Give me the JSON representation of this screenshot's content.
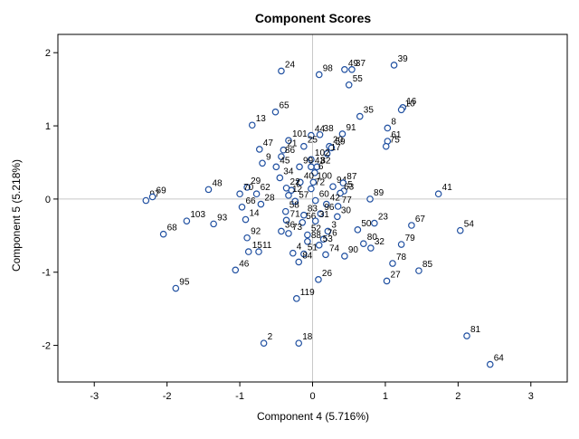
{
  "chart_data": {
    "type": "scatter",
    "title": "Component Scores",
    "xlabel": "Component 4 (5.716%)",
    "ylabel": "Component 5 (5.218%)",
    "xlim": [
      -3.5,
      3.5
    ],
    "ylim": [
      -2.5,
      2.25
    ],
    "xticks": [
      -3,
      -2,
      -1,
      0,
      1,
      2,
      3
    ],
    "yticks": [
      -2,
      -1,
      0,
      1,
      2
    ],
    "grid": false,
    "marker_color": "#1f4fa0",
    "reference_lines": {
      "x": 0,
      "y": 0
    },
    "points": [
      {
        "label": "39",
        "x": 1.12,
        "y": 1.83
      },
      {
        "label": "24",
        "x": -0.43,
        "y": 1.75
      },
      {
        "label": "49",
        "x": 0.44,
        "y": 1.77
      },
      {
        "label": "98",
        "x": 0.09,
        "y": 1.7
      },
      {
        "label": "37",
        "x": 0.54,
        "y": 1.77
      },
      {
        "label": "55",
        "x": 0.5,
        "y": 1.56
      },
      {
        "label": "16",
        "x": 1.24,
        "y": 1.25
      },
      {
        "label": "65",
        "x": -0.51,
        "y": 1.19
      },
      {
        "label": "35",
        "x": 0.65,
        "y": 1.13
      },
      {
        "label": "10",
        "x": 1.22,
        "y": 1.22
      },
      {
        "label": "13",
        "x": -0.83,
        "y": 1.01
      },
      {
        "label": "8",
        "x": 1.03,
        "y": 0.97
      },
      {
        "label": "44",
        "x": -0.02,
        "y": 0.87
      },
      {
        "label": "38",
        "x": 0.1,
        "y": 0.88
      },
      {
        "label": "91",
        "x": 0.41,
        "y": 0.89
      },
      {
        "label": "61",
        "x": 1.03,
        "y": 0.79
      },
      {
        "label": "101",
        "x": -0.33,
        "y": 0.8
      },
      {
        "label": "25",
        "x": -0.12,
        "y": 0.72
      },
      {
        "label": "21",
        "x": -0.4,
        "y": 0.67
      },
      {
        "label": "20",
        "x": 0.23,
        "y": 0.72
      },
      {
        "label": "59",
        "x": 0.26,
        "y": 0.7
      },
      {
        "label": "47",
        "x": -0.73,
        "y": 0.68
      },
      {
        "label": "17",
        "x": 0.2,
        "y": 0.62
      },
      {
        "label": "75",
        "x": 1.01,
        "y": 0.72
      },
      {
        "label": "86",
        "x": -0.43,
        "y": 0.58
      },
      {
        "label": "102",
        "x": -0.02,
        "y": 0.54
      },
      {
        "label": "9",
        "x": -0.69,
        "y": 0.49
      },
      {
        "label": "45",
        "x": -0.5,
        "y": 0.44
      },
      {
        "label": "99",
        "x": -0.18,
        "y": 0.44
      },
      {
        "label": "43",
        "x": -0.02,
        "y": 0.44
      },
      {
        "label": "82",
        "x": 0.06,
        "y": 0.44
      },
      {
        "label": "6",
        "x": 0.03,
        "y": 0.36
      },
      {
        "label": "34",
        "x": -0.45,
        "y": 0.29
      },
      {
        "label": "29",
        "x": -0.9,
        "y": 0.16
      },
      {
        "label": "40",
        "x": -0.17,
        "y": 0.23
      },
      {
        "label": "100",
        "x": 0.01,
        "y": 0.23
      },
      {
        "label": "94",
        "x": 0.28,
        "y": 0.17
      },
      {
        "label": "87",
        "x": 0.42,
        "y": 0.22
      },
      {
        "label": "5",
        "x": 0.43,
        "y": 0.11
      },
      {
        "label": "48",
        "x": -1.43,
        "y": 0.13
      },
      {
        "label": "97",
        "x": -2.29,
        "y": -0.02
      },
      {
        "label": "69",
        "x": -2.2,
        "y": 0.03
      },
      {
        "label": "70",
        "x": -1.0,
        "y": 0.07
      },
      {
        "label": "62",
        "x": -0.77,
        "y": 0.07
      },
      {
        "label": "22",
        "x": -0.36,
        "y": 0.15
      },
      {
        "label": "7",
        "x": -0.29,
        "y": 0.12
      },
      {
        "label": "72",
        "x": -0.02,
        "y": 0.14
      },
      {
        "label": "63",
        "x": 0.38,
        "y": 0.08
      },
      {
        "label": "89",
        "x": 0.79,
        "y": 0.0
      },
      {
        "label": "41",
        "x": 1.73,
        "y": 0.07
      },
      {
        "label": "12",
        "x": -0.33,
        "y": 0.05
      },
      {
        "label": "57",
        "x": -0.24,
        "y": -0.03
      },
      {
        "label": "60",
        "x": 0.04,
        "y": -0.02
      },
      {
        "label": "42",
        "x": 0.19,
        "y": -0.07
      },
      {
        "label": "77",
        "x": 0.35,
        "y": -0.1
      },
      {
        "label": "66",
        "x": -0.97,
        "y": -0.11
      },
      {
        "label": "28",
        "x": -0.71,
        "y": -0.07
      },
      {
        "label": "58",
        "x": -0.37,
        "y": -0.17
      },
      {
        "label": "83",
        "x": -0.12,
        "y": -0.22
      },
      {
        "label": "96",
        "x": 0.11,
        "y": -0.2
      },
      {
        "label": "30",
        "x": 0.34,
        "y": -0.24
      },
      {
        "label": "103",
        "x": -1.73,
        "y": -0.3
      },
      {
        "label": "93",
        "x": -1.36,
        "y": -0.34
      },
      {
        "label": "14",
        "x": -0.92,
        "y": -0.28
      },
      {
        "label": "71",
        "x": -0.36,
        "y": -0.29
      },
      {
        "label": "56",
        "x": -0.14,
        "y": -0.32
      },
      {
        "label": "31",
        "x": 0.04,
        "y": -0.3
      },
      {
        "label": "68",
        "x": -2.05,
        "y": -0.48
      },
      {
        "label": "92",
        "x": -0.9,
        "y": -0.53
      },
      {
        "label": "36",
        "x": -0.43,
        "y": -0.44
      },
      {
        "label": "73",
        "x": -0.33,
        "y": -0.47
      },
      {
        "label": "52",
        "x": -0.07,
        "y": -0.49
      },
      {
        "label": "3",
        "x": 0.21,
        "y": -0.44
      },
      {
        "label": "50",
        "x": 0.62,
        "y": -0.42
      },
      {
        "label": "76",
        "x": 0.15,
        "y": -0.55
      },
      {
        "label": "23",
        "x": 0.85,
        "y": -0.33
      },
      {
        "label": "67",
        "x": 1.36,
        "y": -0.36
      },
      {
        "label": "54",
        "x": 2.03,
        "y": -0.43
      },
      {
        "label": "88",
        "x": -0.07,
        "y": -0.58
      },
      {
        "label": "53",
        "x": 0.09,
        "y": -0.63
      },
      {
        "label": "80",
        "x": 0.7,
        "y": -0.61
      },
      {
        "label": "79",
        "x": 1.22,
        "y": -0.62
      },
      {
        "label": "15",
        "x": -0.88,
        "y": -0.72
      },
      {
        "label": "11",
        "x": -0.74,
        "y": -0.72
      },
      {
        "label": "4",
        "x": -0.27,
        "y": -0.74
      },
      {
        "label": "51",
        "x": -0.12,
        "y": -0.75
      },
      {
        "label": "74",
        "x": 0.18,
        "y": -0.76
      },
      {
        "label": "90",
        "x": 0.44,
        "y": -0.78
      },
      {
        "label": "32",
        "x": 0.8,
        "y": -0.67
      },
      {
        "label": "78",
        "x": 1.1,
        "y": -0.88
      },
      {
        "label": "84",
        "x": -0.19,
        "y": -0.86
      },
      {
        "label": "46",
        "x": -1.06,
        "y": -0.97
      },
      {
        "label": "85",
        "x": 1.46,
        "y": -0.98
      },
      {
        "label": "26",
        "x": 0.08,
        "y": -1.1
      },
      {
        "label": "27",
        "x": 1.02,
        "y": -1.12
      },
      {
        "label": "95",
        "x": -1.88,
        "y": -1.22
      },
      {
        "label": "119",
        "x": -0.22,
        "y": -1.36
      },
      {
        "label": "81",
        "x": 2.12,
        "y": -1.87
      },
      {
        "label": "2",
        "x": -0.67,
        "y": -1.97
      },
      {
        "label": "18",
        "x": -0.19,
        "y": -1.97
      },
      {
        "label": "64",
        "x": 2.44,
        "y": -2.26
      }
    ]
  }
}
